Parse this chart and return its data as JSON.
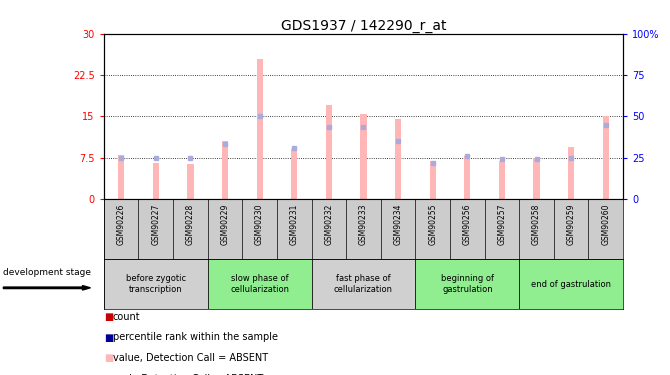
{
  "title": "GDS1937 / 142290_r_at",
  "samples": [
    "GSM90226",
    "GSM90227",
    "GSM90228",
    "GSM90229",
    "GSM90230",
    "GSM90231",
    "GSM90232",
    "GSM90233",
    "GSM90234",
    "GSM90255",
    "GSM90256",
    "GSM90257",
    "GSM90258",
    "GSM90259",
    "GSM90260"
  ],
  "pink_bars": [
    8.0,
    6.5,
    6.3,
    10.5,
    25.5,
    9.0,
    17.0,
    15.5,
    14.5,
    6.8,
    7.8,
    6.8,
    7.5,
    9.5,
    15.0
  ],
  "blue_squares": [
    7.5,
    7.5,
    7.5,
    10.0,
    15.0,
    9.2,
    13.0,
    13.0,
    10.5,
    6.5,
    7.8,
    7.2,
    7.2,
    7.5,
    13.5
  ],
  "ylim_left": [
    0,
    30
  ],
  "ylim_right": [
    0,
    100
  ],
  "yticks_left": [
    0,
    7.5,
    15,
    22.5,
    30
  ],
  "yticks_right": [
    0,
    25,
    50,
    75,
    100
  ],
  "ytick_labels_left": [
    "0",
    "7.5",
    "15",
    "22.5",
    "30"
  ],
  "ytick_labels_right": [
    "0",
    "25",
    "50",
    "75",
    "100%"
  ],
  "stage_groups": [
    {
      "label": "before zygotic\ntranscription",
      "indices": [
        0,
        1,
        2
      ],
      "color": "#d0d0d0"
    },
    {
      "label": "slow phase of\ncellularization",
      "indices": [
        3,
        4,
        5
      ],
      "color": "#90ee90"
    },
    {
      "label": "fast phase of\ncellularization",
      "indices": [
        6,
        7,
        8
      ],
      "color": "#d0d0d0"
    },
    {
      "label": "beginning of\ngastrulation",
      "indices": [
        9,
        10,
        11
      ],
      "color": "#90ee90"
    },
    {
      "label": "end of gastrulation",
      "indices": [
        12,
        13,
        14
      ],
      "color": "#90ee90"
    }
  ],
  "pink_color": "#ffb6b6",
  "blue_color": "#aaaadd",
  "red_color": "#cc0000",
  "dark_blue_color": "#000099",
  "background_color": "#ffffff",
  "plot_bg_color": "#ffffff",
  "grid_color": "#000000",
  "title_fontsize": 10,
  "tick_fontsize": 7,
  "label_fontsize": 7,
  "legend_fontsize": 7,
  "bar_width": 0.18
}
